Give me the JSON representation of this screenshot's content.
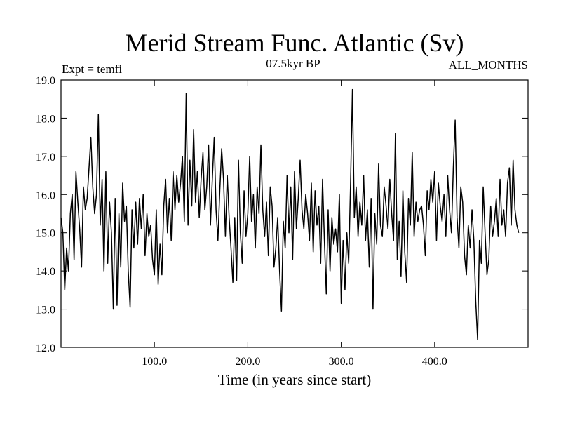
{
  "chart_data": {
    "type": "line",
    "title": "Merid Stream Func. Atlantic (Sv)",
    "subtitle": "07.5kyr BP",
    "left_label": "Expt = temfi",
    "right_label": "ALL_MONTHS",
    "xlabel": "Time (in years since start)",
    "ylabel": "",
    "xlim": [
      0,
      500
    ],
    "ylim": [
      12.0,
      19.0
    ],
    "x_ticks": [
      100,
      200,
      300,
      400
    ],
    "x_tick_labels": [
      "100.0",
      "200.0",
      "300.0",
      "400.0"
    ],
    "y_ticks": [
      12,
      13,
      14,
      15,
      16,
      17,
      18,
      19
    ],
    "y_tick_labels": [
      "12.0",
      "13.0",
      "14.0",
      "15.0",
      "16.0",
      "17.0",
      "18.0",
      "19.0"
    ],
    "series": [
      {
        "name": "Merid Stream Func. Atlantic",
        "x_start": 0,
        "x_step": 2,
        "values": [
          15.4,
          15.0,
          13.5,
          14.6,
          14.0,
          15.5,
          16.0,
          14.3,
          16.6,
          15.8,
          15.1,
          14.1,
          16.2,
          15.6,
          15.9,
          16.7,
          17.5,
          16.2,
          15.5,
          16.0,
          18.1,
          15.2,
          16.4,
          14.0,
          16.6,
          14.2,
          15.8,
          15.0,
          13.0,
          15.9,
          13.1,
          15.5,
          14.1,
          16.3,
          15.3,
          15.7,
          14.0,
          13.05,
          15.6,
          14.6,
          15.8,
          14.7,
          15.9,
          15.1,
          16.0,
          14.4,
          15.5,
          14.9,
          15.2,
          14.3,
          13.9,
          15.6,
          13.65,
          14.7,
          13.9,
          15.7,
          16.4,
          15.0,
          15.9,
          14.8,
          16.6,
          15.6,
          16.5,
          15.8,
          16.3,
          17.0,
          15.3,
          18.65,
          15.2,
          16.9,
          15.7,
          17.7,
          15.8,
          16.6,
          15.4,
          16.4,
          17.1,
          15.6,
          16.2,
          17.3,
          15.2,
          16.4,
          17.5,
          15.6,
          14.8,
          16.1,
          17.2,
          16.4,
          14.9,
          16.5,
          15.4,
          14.6,
          13.7,
          15.4,
          13.75,
          16.9,
          15.0,
          14.2,
          16.1,
          14.9,
          15.5,
          17.0,
          15.3,
          16.0,
          14.6,
          16.2,
          15.5,
          17.3,
          15.6,
          14.9,
          15.8,
          14.4,
          16.2,
          15.7,
          14.1,
          14.6,
          15.4,
          14.0,
          12.95,
          15.3,
          14.6,
          16.5,
          15.0,
          16.2,
          14.3,
          16.6,
          15.1,
          15.9,
          16.9,
          15.6,
          15.1,
          16.0,
          15.5,
          14.8,
          16.3,
          14.5,
          16.1,
          15.2,
          15.7,
          14.2,
          16.4,
          14.8,
          13.4,
          15.6,
          14.0,
          15.4,
          14.7,
          15.1,
          14.5,
          16.0,
          13.15,
          14.8,
          13.5,
          15.0,
          14.2,
          16.3,
          18.75,
          15.4,
          16.2,
          14.9,
          15.8,
          15.2,
          16.5,
          14.8,
          15.6,
          14.1,
          15.9,
          13.0,
          15.5,
          14.7,
          16.8,
          15.2,
          14.9,
          16.2,
          15.7,
          15.1,
          16.4,
          15.5,
          14.8,
          17.6,
          14.3,
          15.3,
          13.85,
          16.1,
          14.5,
          13.7,
          15.9,
          15.2,
          17.1,
          14.9,
          15.8,
          15.3,
          15.6,
          15.7,
          15.2,
          14.4,
          16.1,
          15.6,
          16.4,
          15.8,
          16.6,
          14.8,
          16.3,
          15.7,
          15.3,
          16.0,
          14.9,
          16.5,
          15.6,
          15.0,
          16.7,
          17.95,
          15.4,
          14.6,
          16.2,
          15.8,
          14.4,
          13.9,
          15.2,
          14.6,
          15.6,
          14.8,
          13.2,
          12.2,
          14.8,
          14.2,
          16.2,
          15.0,
          13.9,
          14.3,
          15.7,
          14.9,
          15.3,
          15.9,
          14.9,
          16.4,
          15.2,
          15.6,
          14.9,
          16.3,
          16.7,
          15.2,
          16.9,
          15.6,
          15.2,
          15.0
        ]
      }
    ]
  }
}
